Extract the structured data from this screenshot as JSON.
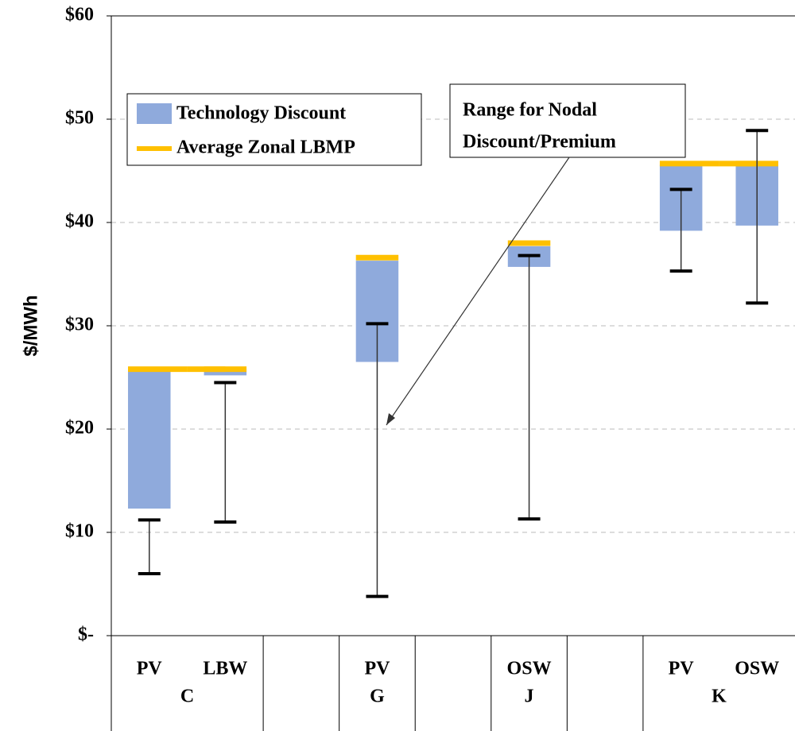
{
  "chart_data": {
    "type": "floating_bar",
    "y_label": "$/MWh",
    "categories": [
      "PV",
      "LBW",
      null,
      "PV",
      null,
      "OSW",
      null,
      "PV",
      "OSW"
    ],
    "group_labels": [
      "C",
      "C",
      null,
      "G",
      null,
      "J",
      null,
      "K",
      "K"
    ],
    "series": [
      {
        "name": "Technology Discount",
        "color": "#8faadc",
        "low": [
          12.3,
          25.2,
          null,
          26.5,
          null,
          35.7,
          null,
          39.2,
          39.7
        ],
        "high": [
          25.8,
          25.8,
          null,
          36.3,
          null,
          37.7,
          null,
          45.6,
          45.6
        ]
      },
      {
        "name": "Average Zonal LBMP",
        "color": "#ffc000",
        "values": [
          25.8,
          25.8,
          null,
          36.6,
          null,
          38.0,
          null,
          45.7,
          45.7
        ]
      }
    ],
    "range": {
      "low": [
        6.0,
        11.0,
        null,
        3.8,
        null,
        11.3,
        null,
        35.3,
        32.2
      ],
      "high": [
        11.2,
        24.5,
        null,
        30.2,
        null,
        36.8,
        null,
        43.2,
        48.9
      ]
    },
    "annotation": [
      "Range for Nodal",
      "Discount/Premium"
    ],
    "ylim": [
      0,
      60
    ],
    "yticks": [
      {
        "value": 0,
        "label": "$-"
      },
      {
        "value": 10,
        "label": "$10"
      },
      {
        "value": 20,
        "label": "$20"
      },
      {
        "value": 30,
        "label": "$30"
      },
      {
        "value": 40,
        "label": "$40"
      },
      {
        "value": 50,
        "label": "$50"
      },
      {
        "value": 60,
        "label": "$60"
      }
    ],
    "grid": true
  }
}
